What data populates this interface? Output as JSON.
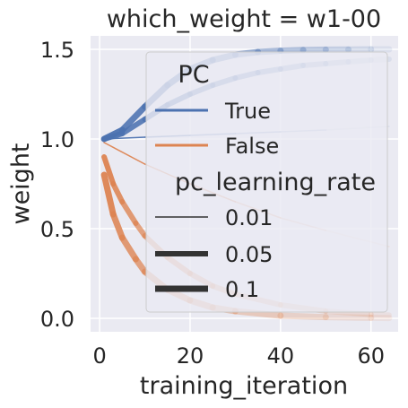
{
  "chart_data": {
    "type": "line",
    "title": "which_weight = w1-00",
    "xlabel": "training_iteration",
    "ylabel": "weight",
    "xlim": [
      -2,
      66
    ],
    "ylim": [
      -0.075,
      1.575
    ],
    "xticks": [
      0,
      20,
      40,
      60
    ],
    "yticks": [
      0.0,
      0.5,
      1.0,
      1.5
    ],
    "xtick_labels": [
      "0",
      "20",
      "40",
      "60"
    ],
    "ytick_labels": [
      "0.0",
      "0.5",
      "1.0",
      "1.5"
    ],
    "grid": true,
    "legend_position": "upper-right",
    "legend": {
      "hue_title": "PC",
      "hue_entries": [
        {
          "label": "True",
          "color": "#4c72b0"
        },
        {
          "label": "False",
          "color": "#dd8452"
        }
      ],
      "size_title": "pc_learning_rate",
      "size_entries": [
        {
          "label": "0.01"
        },
        {
          "label": "0.05"
        },
        {
          "label": "0.1"
        }
      ]
    },
    "series": [
      {
        "pc": "True",
        "pc_learning_rate": "0.1",
        "x": [
          1,
          5,
          10,
          15,
          20,
          25,
          30,
          35,
          40,
          45,
          50,
          55,
          60,
          64
        ],
        "y": [
          1.0,
          1.05,
          1.18,
          1.3,
          1.39,
          1.44,
          1.47,
          1.485,
          1.492,
          1.496,
          1.498,
          1.499,
          1.5,
          1.5
        ]
      },
      {
        "pc": "True",
        "pc_learning_rate": "0.05",
        "x": [
          1,
          5,
          10,
          15,
          20,
          25,
          30,
          35,
          40,
          45,
          50,
          55,
          60,
          64
        ],
        "y": [
          1.0,
          1.03,
          1.11,
          1.19,
          1.25,
          1.3,
          1.34,
          1.37,
          1.39,
          1.41,
          1.42,
          1.43,
          1.44,
          1.445
        ]
      },
      {
        "pc": "True",
        "pc_learning_rate": "0.01",
        "x": [
          1,
          10,
          20,
          30,
          40,
          50,
          64
        ],
        "y": [
          1.0,
          1.01,
          1.02,
          1.03,
          1.04,
          1.05,
          1.07
        ]
      },
      {
        "pc": "False",
        "pc_learning_rate": "0.1",
        "x": [
          1,
          3,
          5,
          8,
          10,
          15,
          20,
          25,
          30,
          40,
          50,
          60,
          64
        ],
        "y": [
          0.8,
          0.58,
          0.45,
          0.33,
          0.26,
          0.16,
          0.1,
          0.06,
          0.04,
          0.015,
          0.007,
          0.003,
          0.002
        ]
      },
      {
        "pc": "False",
        "pc_learning_rate": "0.05",
        "x": [
          1,
          3,
          5,
          8,
          10,
          15,
          20,
          25,
          30,
          40,
          50,
          60,
          64
        ],
        "y": [
          0.9,
          0.75,
          0.65,
          0.53,
          0.46,
          0.34,
          0.25,
          0.18,
          0.135,
          0.075,
          0.04,
          0.022,
          0.018
        ]
      },
      {
        "pc": "False",
        "pc_learning_rate": "0.01",
        "x": [
          1,
          10,
          20,
          30,
          40,
          50,
          64
        ],
        "y": [
          0.98,
          0.86,
          0.75,
          0.65,
          0.56,
          0.49,
          0.4
        ]
      }
    ]
  }
}
